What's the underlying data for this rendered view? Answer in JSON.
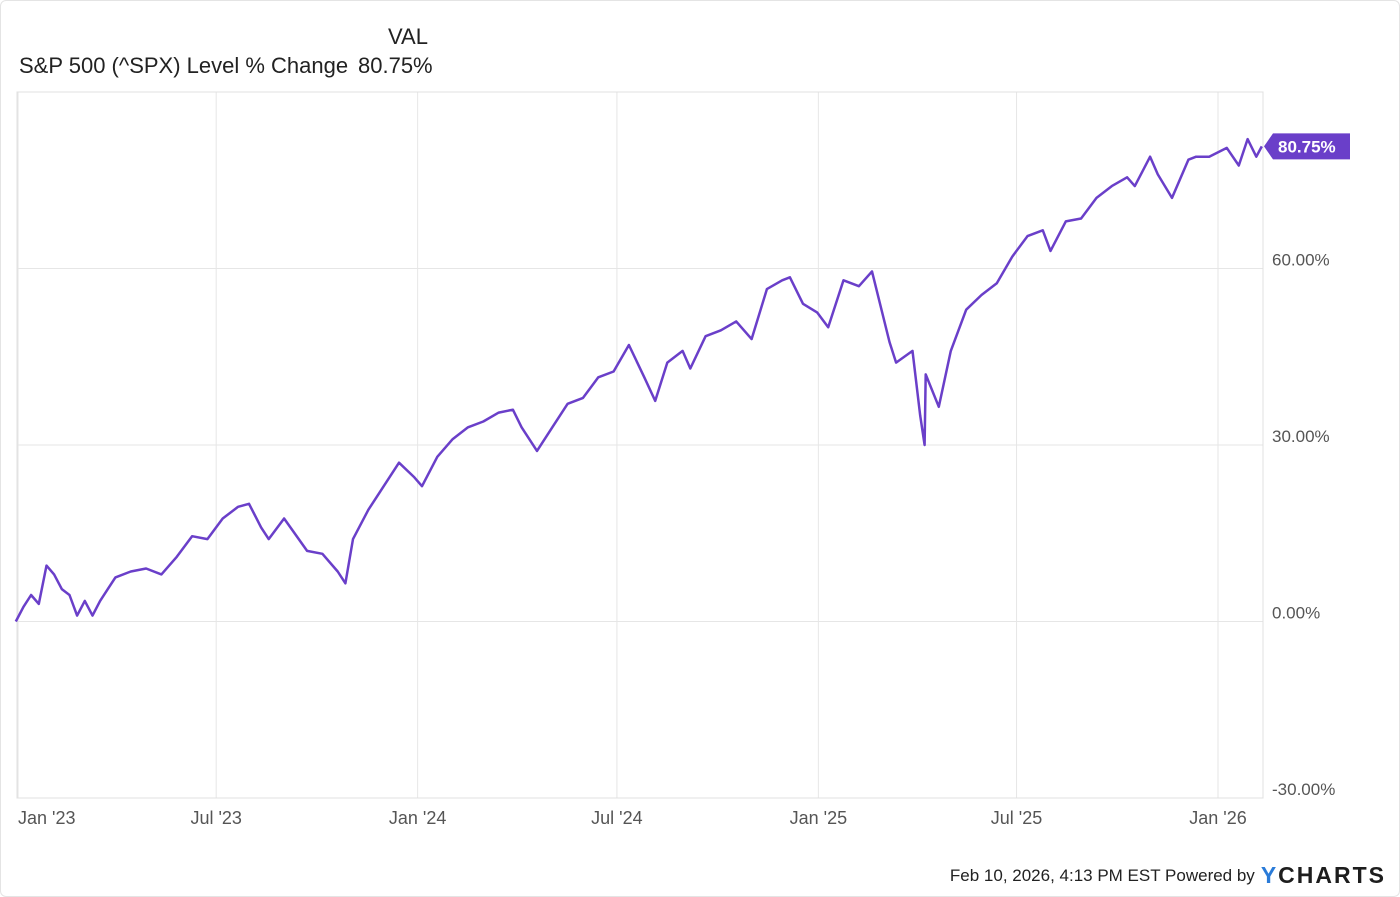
{
  "legend": {
    "header": "VAL",
    "series_label": "S&P 500 (^SPX) Level % Change",
    "series_value": "80.75%"
  },
  "footer": {
    "timestamp": "Feb 10, 2026, 4:13 PM EST Powered by",
    "brand_y": "Y",
    "brand_rest": "CHARTS"
  },
  "colors": {
    "series": "#6a3fc9",
    "grid": "#e6e6e6"
  },
  "chart_data": {
    "type": "line",
    "title": "",
    "xlabel": "",
    "ylabel": "",
    "ylim": [
      -30,
      90
    ],
    "y_ticks": [
      60,
      30,
      0,
      -30
    ],
    "y_tick_labels": [
      "60.00%",
      "30.00%",
      "0.00%",
      "-30.00%"
    ],
    "x_ticks": [
      "2023-01-01",
      "2023-07-01",
      "2024-01-01",
      "2024-07-01",
      "2025-01-01",
      "2025-07-01",
      "2026-01-01"
    ],
    "x_tick_labels": [
      "Jan '23",
      "Jul '23",
      "Jan '24",
      "Jul '24",
      "Jan '25",
      "Jul '25",
      "Jan '26"
    ],
    "end_label": "80.75%",
    "grid": true,
    "series": [
      {
        "name": "S&P 500 (^SPX) Level % Change",
        "x": [
          "2022-12-30",
          "2023-01-06",
          "2023-01-13",
          "2023-01-20",
          "2023-01-27",
          "2023-02-03",
          "2023-02-10",
          "2023-02-17",
          "2023-02-24",
          "2023-03-03",
          "2023-03-10",
          "2023-03-17",
          "2023-03-24",
          "2023-03-31",
          "2023-04-14",
          "2023-04-28",
          "2023-05-12",
          "2023-05-26",
          "2023-06-09",
          "2023-06-23",
          "2023-07-07",
          "2023-07-21",
          "2023-07-31",
          "2023-08-11",
          "2023-08-18",
          "2023-09-01",
          "2023-09-22",
          "2023-10-06",
          "2023-10-20",
          "2023-10-27",
          "2023-11-03",
          "2023-11-17",
          "2023-12-01",
          "2023-12-15",
          "2023-12-29",
          "2024-01-05",
          "2024-01-19",
          "2024-02-02",
          "2024-02-16",
          "2024-03-01",
          "2024-03-15",
          "2024-03-28",
          "2024-04-05",
          "2024-04-19",
          "2024-05-03",
          "2024-05-17",
          "2024-05-31",
          "2024-06-14",
          "2024-06-28",
          "2024-07-12",
          "2024-07-26",
          "2024-08-05",
          "2024-08-16",
          "2024-08-30",
          "2024-09-06",
          "2024-09-20",
          "2024-10-04",
          "2024-10-18",
          "2024-11-01",
          "2024-11-15",
          "2024-11-29",
          "2024-12-06",
          "2024-12-18",
          "2024-12-31",
          "2025-01-10",
          "2025-01-24",
          "2025-02-07",
          "2025-02-19",
          "2025-03-07",
          "2025-03-13",
          "2025-03-28",
          "2025-04-04",
          "2025-04-08",
          "2025-04-09",
          "2025-04-21",
          "2025-05-02",
          "2025-05-16",
          "2025-05-30",
          "2025-06-13",
          "2025-06-27",
          "2025-07-11",
          "2025-07-25",
          "2025-08-01",
          "2025-08-15",
          "2025-08-29",
          "2025-09-12",
          "2025-09-26",
          "2025-10-10",
          "2025-10-17",
          "2025-10-31",
          "2025-11-07",
          "2025-11-20",
          "2025-12-05",
          "2025-12-12",
          "2025-12-24",
          "2026-01-09",
          "2026-01-20",
          "2026-01-28",
          "2026-02-05",
          "2026-02-10"
        ],
        "values": [
          0.0,
          2.5,
          4.5,
          3.0,
          9.5,
          8.0,
          5.5,
          4.5,
          1.0,
          3.5,
          1.0,
          3.5,
          5.5,
          7.5,
          8.5,
          9.0,
          8.0,
          11.0,
          14.5,
          14.0,
          17.5,
          19.5,
          20.0,
          16.0,
          14.0,
          17.5,
          12.0,
          11.5,
          8.5,
          6.5,
          14.0,
          19.0,
          23.0,
          27.0,
          24.5,
          23.0,
          28.0,
          31.0,
          33.0,
          34.0,
          35.5,
          36.0,
          33.0,
          29.0,
          33.0,
          37.0,
          38.0,
          41.5,
          42.5,
          47.0,
          41.5,
          37.5,
          44.0,
          46.0,
          43.0,
          48.5,
          49.5,
          51.0,
          48.0,
          56.5,
          58.0,
          58.5,
          54.0,
          52.5,
          50.0,
          58.0,
          57.0,
          59.5,
          47.5,
          44.0,
          46.0,
          35.0,
          30.0,
          42.0,
          36.5,
          46.0,
          53.0,
          55.5,
          57.5,
          62.0,
          65.5,
          66.5,
          63.0,
          68.0,
          68.5,
          72.0,
          74.0,
          75.5,
          74.0,
          79.0,
          76.0,
          72.0,
          78.5,
          79.0,
          79.0,
          80.5,
          77.5,
          82.0,
          79.0,
          80.75
        ]
      }
    ]
  }
}
